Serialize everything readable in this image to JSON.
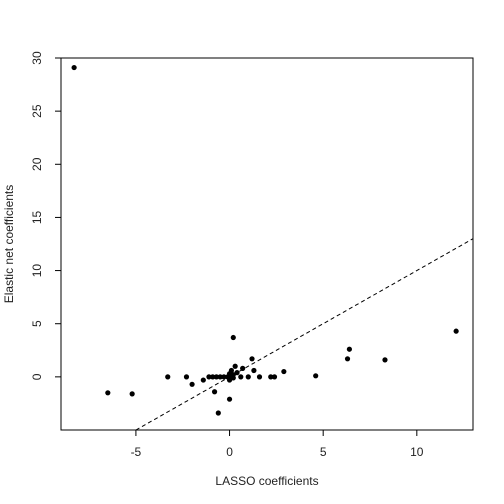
{
  "chart_data": {
    "type": "scatter",
    "title": "",
    "xlabel": "LASSO coefficients",
    "ylabel": "Elastic net coefficients",
    "xlim": [
      -9.0,
      13.0
    ],
    "ylim": [
      -5.0,
      30.0
    ],
    "x_ticks": [
      -5,
      0,
      5,
      10
    ],
    "y_ticks": [
      0,
      5,
      10,
      15,
      20,
      25,
      30
    ],
    "grid": false,
    "legend": "none",
    "reference_line": {
      "style": "dashed",
      "slope": 1,
      "intercept": 0
    },
    "point_color": "#000000",
    "points": [
      {
        "x": -8.3,
        "y": 29.1
      },
      {
        "x": -6.5,
        "y": -1.5
      },
      {
        "x": -5.2,
        "y": -1.6
      },
      {
        "x": -3.3,
        "y": 0.0
      },
      {
        "x": -2.3,
        "y": 0.0
      },
      {
        "x": -2.0,
        "y": -0.7
      },
      {
        "x": -1.4,
        "y": -0.3
      },
      {
        "x": -1.1,
        "y": 0.0
      },
      {
        "x": -0.9,
        "y": 0.0
      },
      {
        "x": -0.7,
        "y": 0.0
      },
      {
        "x": -0.5,
        "y": 0.0
      },
      {
        "x": -0.3,
        "y": 0.0
      },
      {
        "x": -0.1,
        "y": 0.0
      },
      {
        "x": 0.0,
        "y": 0.0
      },
      {
        "x": 0.0,
        "y": 0.3
      },
      {
        "x": 0.1,
        "y": 0.6
      },
      {
        "x": 0.2,
        "y": 0.2
      },
      {
        "x": 0.0,
        "y": -0.3
      },
      {
        "x": 0.2,
        "y": -0.1
      },
      {
        "x": 0.3,
        "y": 1.0
      },
      {
        "x": 0.4,
        "y": 0.4
      },
      {
        "x": 0.6,
        "y": 0.0
      },
      {
        "x": 0.7,
        "y": 0.8
      },
      {
        "x": 1.0,
        "y": 0.0
      },
      {
        "x": 1.2,
        "y": 1.7
      },
      {
        "x": 1.3,
        "y": 0.6
      },
      {
        "x": 1.6,
        "y": 0.0
      },
      {
        "x": 2.2,
        "y": 0.0
      },
      {
        "x": 2.4,
        "y": 0.0
      },
      {
        "x": 2.9,
        "y": 0.5
      },
      {
        "x": -0.8,
        "y": -1.4
      },
      {
        "x": -0.6,
        "y": -3.4
      },
      {
        "x": 0.0,
        "y": -2.1
      },
      {
        "x": 0.2,
        "y": 3.7
      },
      {
        "x": 4.6,
        "y": 0.1
      },
      {
        "x": 6.3,
        "y": 1.7
      },
      {
        "x": 6.4,
        "y": 2.6
      },
      {
        "x": 8.3,
        "y": 1.6
      },
      {
        "x": 12.1,
        "y": 4.3
      }
    ]
  }
}
